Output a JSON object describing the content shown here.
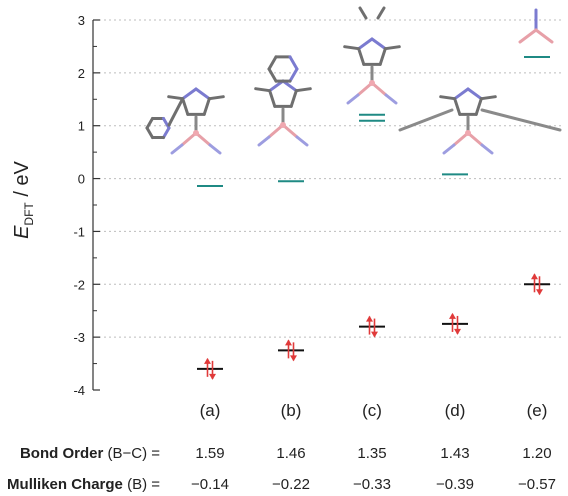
{
  "chart_data": {
    "type": "scatter",
    "ylabel_main": "E",
    "ylabel_sub": "DFT",
    "ylabel_unit": " / eV",
    "ylim": [
      -4,
      3
    ],
    "yticks": [
      "3",
      "2",
      "1",
      "0",
      "-1",
      "-2",
      "-3",
      "-4"
    ],
    "grid": true,
    "categories": [
      "(a)",
      "(b)",
      "(c)",
      "(d)",
      "(e)"
    ],
    "occupied_levels": [
      -3.6,
      -3.25,
      -2.8,
      -2.75,
      -2.0
    ],
    "unoccupied_levels": [
      -0.14,
      -0.05,
      1.15,
      0.08,
      2.3
    ],
    "degenerate_unoccupied": [
      false,
      false,
      true,
      false,
      false
    ],
    "colors": {
      "occupied": "#111111",
      "unoccupied": "#1f8a84",
      "electron": "#e03a3a",
      "grid": "#bdbdbd"
    },
    "table": {
      "bond_order": {
        "label_bold": "Bond Order",
        "label_rest": " (B−C) =",
        "values": [
          "1.59",
          "1.46",
          "1.35",
          "1.43",
          "1.20"
        ]
      },
      "charge": {
        "label_bold": "Mulliken Charge",
        "label_rest": " (B) =",
        "values": [
          "−0.14",
          "−0.22",
          "−0.33",
          "−0.39",
          "−0.57"
        ]
      }
    }
  }
}
